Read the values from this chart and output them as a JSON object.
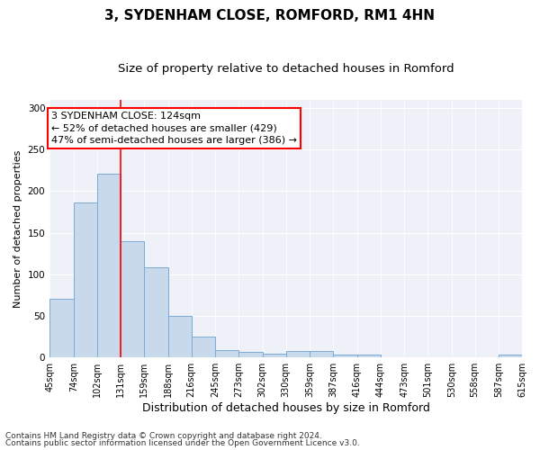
{
  "title": "3, SYDENHAM CLOSE, ROMFORD, RM1 4HN",
  "subtitle": "Size of property relative to detached houses in Romford",
  "xlabel": "Distribution of detached houses by size in Romford",
  "ylabel": "Number of detached properties",
  "bar_color": "#c9d9ec",
  "bar_edge_color": "#7aacd6",
  "vline_x": 131,
  "vline_color": "red",
  "annotation_lines": [
    "3 SYDENHAM CLOSE: 124sqm",
    "← 52% of detached houses are smaller (429)",
    "47% of semi-detached houses are larger (386) →"
  ],
  "annotation_box_color": "white",
  "annotation_box_edge_color": "red",
  "bins": [
    45,
    74,
    102,
    131,
    159,
    188,
    216,
    245,
    273,
    302,
    330,
    359,
    387,
    416,
    444,
    473,
    501,
    530,
    558,
    587,
    615
  ],
  "heights": [
    70,
    186,
    221,
    140,
    108,
    50,
    25,
    9,
    7,
    5,
    8,
    8,
    3,
    4,
    0,
    0,
    0,
    0,
    0,
    3
  ],
  "xlim": [
    45,
    615
  ],
  "ylim": [
    0,
    310
  ],
  "yticks": [
    0,
    50,
    100,
    150,
    200,
    250,
    300
  ],
  "xtick_labels": [
    "45sqm",
    "74sqm",
    "102sqm",
    "131sqm",
    "159sqm",
    "188sqm",
    "216sqm",
    "245sqm",
    "273sqm",
    "302sqm",
    "330sqm",
    "359sqm",
    "387sqm",
    "416sqm",
    "444sqm",
    "473sqm",
    "501sqm",
    "530sqm",
    "558sqm",
    "587sqm",
    "615sqm"
  ],
  "footer1": "Contains HM Land Registry data © Crown copyright and database right 2024.",
  "footer2": "Contains public sector information licensed under the Open Government Licence v3.0.",
  "bg_color": "#eef2f8",
  "title_fontsize": 11,
  "subtitle_fontsize": 9.5,
  "xlabel_fontsize": 9,
  "ylabel_fontsize": 8,
  "tick_fontsize": 7,
  "footer_fontsize": 6.5,
  "annotation_fontsize": 8
}
